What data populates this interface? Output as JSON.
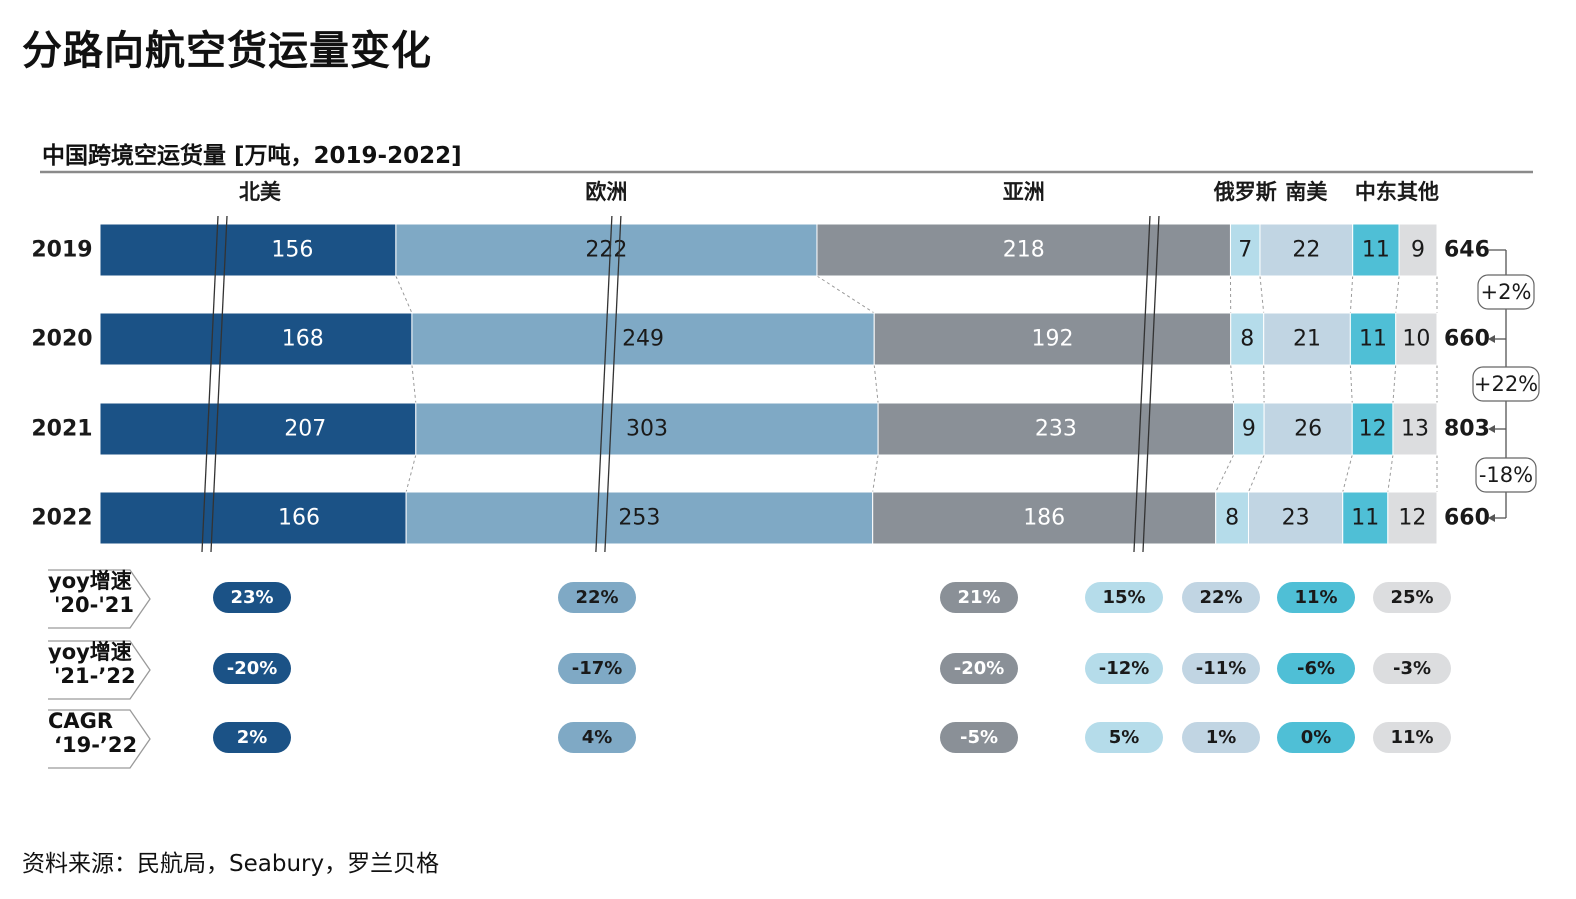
{
  "title": "分路向航空货运量变化",
  "subtitle": "中国跨境空运货量 [万吨，2019-2022]",
  "source": "资料来源：民航局，Seabury，罗兰贝格",
  "chart_data": {
    "type": "stacked-bar-horizontal",
    "categories": [
      "2019",
      "2020",
      "2021",
      "2022"
    ],
    "series": [
      {
        "name": "北美",
        "color": "#1b5286",
        "values": [
          156,
          168,
          207,
          166
        ],
        "text_color": "#ffffff"
      },
      {
        "name": "欧洲",
        "color": "#7fa9c5",
        "values": [
          222,
          249,
          303,
          253
        ],
        "text_color": "#1a1a1a"
      },
      {
        "name": "亚洲",
        "color": "#8a9097",
        "values": [
          218,
          192,
          233,
          186
        ],
        "text_color": "#ffffff"
      },
      {
        "name": "俄罗斯",
        "color": "#b5dcea",
        "values": [
          7,
          8,
          9,
          8
        ],
        "text_color": "#1a1a1a"
      },
      {
        "name": "南美",
        "color": "#c1d5e3",
        "values": [
          22,
          21,
          26,
          23
        ],
        "text_color": "#1a1a1a"
      },
      {
        "name": "中东",
        "color": "#4fbfd6",
        "values": [
          11,
          11,
          12,
          11
        ],
        "text_color": "#1a1a1a"
      },
      {
        "name": "其他",
        "color": "#dcdddf",
        "values": [
          9,
          10,
          13,
          12
        ],
        "text_color": "#1a1a1a"
      }
    ],
    "totals": [
      646,
      660,
      803,
      660
    ],
    "total_changes": [
      "+2%",
      "+22%",
      "-18%"
    ],
    "axis_break_series": [
      "北美",
      "欧洲",
      "亚洲"
    ],
    "growth_rows": [
      {
        "label_line1": "yoy增速",
        "label_line2": "'20-'21",
        "values": [
          "23%",
          "22%",
          "21%",
          "15%",
          "22%",
          "11%",
          "25%"
        ]
      },
      {
        "label_line1": "yoy增速",
        "label_line2": "'21-’22",
        "values": [
          "-20%",
          "-17%",
          "-20%",
          "-12%",
          "-11%",
          "-6%",
          "-3%"
        ]
      },
      {
        "label_line1": "CAGR",
        "label_line2": "‘19-’22",
        "values": [
          "2%",
          "4%",
          "-5%",
          "5%",
          "1%",
          "0%",
          "11%"
        ]
      }
    ]
  }
}
